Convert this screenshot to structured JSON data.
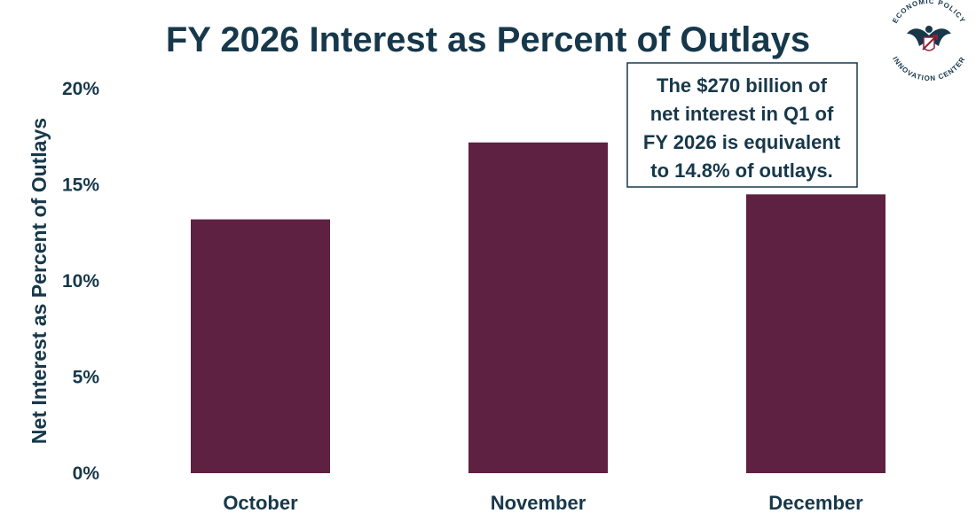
{
  "colors": {
    "text": "#17384b",
    "bar": "#5e2141",
    "annotation_border": "#17384b",
    "logo_accent": "#8f1f3a"
  },
  "logo": {
    "top_text": "ECONOMIC POLICY",
    "bottom_text": "INNOVATION CENTER",
    "icon": "eagle-seal-icon"
  },
  "annotation": {
    "lines": [
      "The $270 billion of",
      "net interest in Q1 of",
      "FY 2026 is equivalent",
      "to 14.8% of outlays."
    ]
  },
  "chart_data": {
    "type": "bar",
    "title": "FY 2026 Interest as Percent of Outlays",
    "xlabel": "",
    "ylabel": "Net Interest as Percent of Outlays",
    "categories": [
      "October",
      "November",
      "December"
    ],
    "values": [
      13.2,
      17.2,
      14.5
    ],
    "unit": "%",
    "ylim": [
      0,
      20
    ],
    "yticks": [
      0,
      5,
      10,
      15,
      20
    ],
    "ytick_labels": [
      "0%",
      "5%",
      "10%",
      "15%",
      "20%"
    ],
    "grid": false,
    "legend": "none"
  }
}
